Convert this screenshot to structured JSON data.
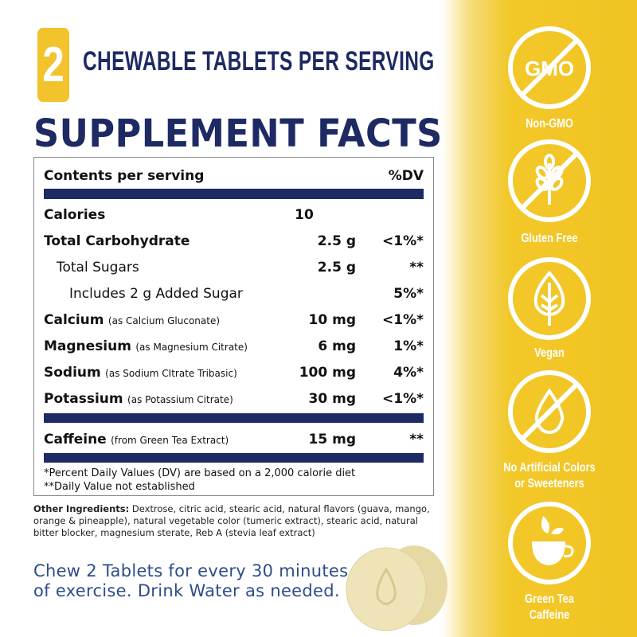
{
  "header": {
    "count": "2",
    "subtitle": "CHEWABLE TABLETS PER SERVING",
    "title": "SUPPLEMENT FACTS"
  },
  "table": {
    "header": {
      "name": "Contents per serving",
      "dv": "%DV"
    },
    "rows": [
      {
        "name": "Calories",
        "note": "",
        "amount": "10",
        "dv": ""
      },
      {
        "name": "Total Carbohydrate",
        "note": "",
        "amount": "2.5 g",
        "dv": "<1%*"
      },
      {
        "name": "Total Sugars",
        "note": "",
        "amount": "2.5 g",
        "dv": "**"
      },
      {
        "name": "Includes 2 g Added Sugar",
        "note": "",
        "amount": "",
        "dv": "5%*"
      },
      {
        "name": "Calcium",
        "note": "(as Calcium Gluconate)",
        "amount": "10 mg",
        "dv": "<1%*"
      },
      {
        "name": "Magnesium",
        "note": "(as Magnesium Citrate)",
        "amount": "6 mg",
        "dv": "1%*"
      },
      {
        "name": "Sodium",
        "note": "(as Sodium CItrate Tribasic)",
        "amount": "100 mg",
        "dv": "4%*"
      },
      {
        "name": "Potassium",
        "note": "(as Potassium Citrate)",
        "amount": "30 mg",
        "dv": "<1%*"
      },
      {
        "name": "Caffeine",
        "note": "(from Green Tea Extract)",
        "amount": "15 mg",
        "dv": "**"
      }
    ],
    "footnotes": [
      "*Percent Daily Values (DV) are based on a 2,000 calorie diet",
      "**Daily Value not established"
    ]
  },
  "ingredients": {
    "label": "Other Ingredients:",
    "text": " Dextrose, citric acid, stearic acid, natural flavors (guava, mango, orange & pineapple), natural vegetable color (tumeric extract), stearic acid, natural bitter blocker, magnesium sterate, Reb A (stevia leaf extract)"
  },
  "directions": {
    "line1": "Chew 2 Tablets for every 30 minutes",
    "line2": "of exercise. Drink Water as needed."
  },
  "badges": [
    {
      "icon": "gmo-crossed-icon",
      "text": "GMO",
      "label": "Non-GMO"
    },
    {
      "icon": "wheat-crossed-icon",
      "label": "Gluten Free"
    },
    {
      "icon": "leaf-icon",
      "label": "Vegan"
    },
    {
      "icon": "drop-crossed-icon",
      "label1": "No Artificial Colors",
      "label2": "or Sweeteners"
    },
    {
      "icon": "tea-cup-icon",
      "label1": "Green Tea",
      "label2": "Caffeine"
    }
  ],
  "colors": {
    "navy": "#1d2a63",
    "yellow": "#f2c32a"
  }
}
